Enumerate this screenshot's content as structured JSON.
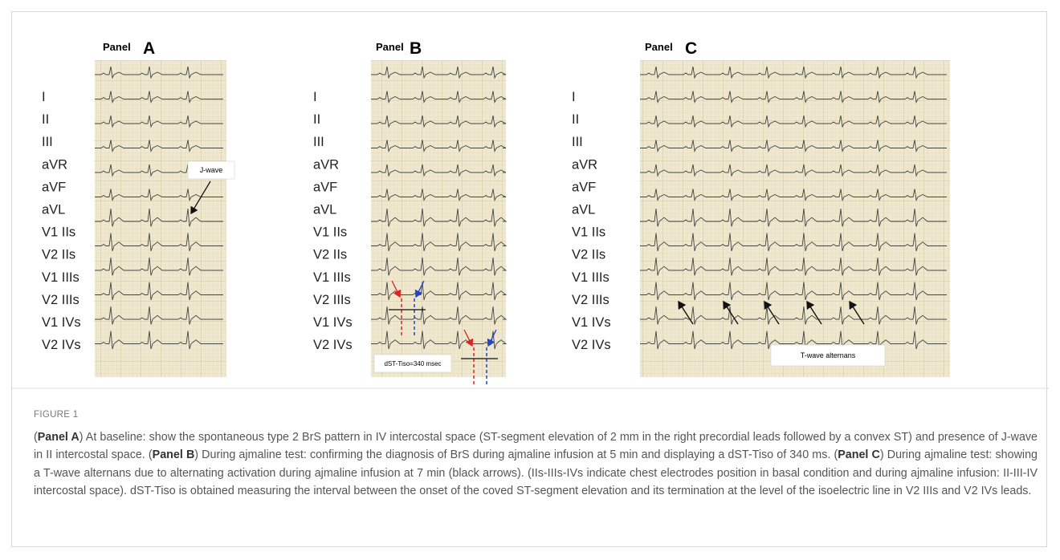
{
  "panels": [
    {
      "prefix": "Panel",
      "letter": "A",
      "leads": [
        "I",
        "II",
        "III",
        "aVR",
        "aVF",
        "aVL",
        "V1 IIs",
        "V2 IIs",
        "V1 IIIs",
        "V2 IIIs",
        "V1 IVs",
        "V2 IVs"
      ],
      "annotations": [
        "J-wave"
      ]
    },
    {
      "prefix": "Panel",
      "letter": "B",
      "leads": [
        "I",
        "II",
        "III",
        "aVR",
        "aVF",
        "aVL",
        "V1 IIs",
        "V2 IIs",
        "V1 IIIs",
        "V2 IIIs",
        "V1 IVs",
        "V2 IVs"
      ],
      "annotations": [
        "dST-Tiso=340 msec"
      ]
    },
    {
      "prefix": "Panel",
      "letter": "C",
      "leads": [
        "I",
        "II",
        "III",
        "aVR",
        "aVF",
        "aVL",
        "V1 IIs",
        "V2 IIs",
        "V1 IIIs",
        "V2 IIIs",
        "V1 IVs",
        "V2 IVs"
      ],
      "annotations": [
        "T-wave alternans"
      ]
    }
  ],
  "caption": {
    "figure_label": "FIGURE 1",
    "parts": [
      {
        "text": "(",
        "bold": false
      },
      {
        "text": "Panel A",
        "bold": true
      },
      {
        "text": ") At baseline: show the spontaneous type 2 BrS pattern in IV intercostal space (ST-segment elevation of 2 mm in the right precordial leads followed by a convex ST) and presence of J-wave in II intercostal space. (",
        "bold": false
      },
      {
        "text": "Panel B",
        "bold": true
      },
      {
        "text": ") During ajmaline test: confirming the diagnosis of BrS during ajmaline infusion at 5 min and displaying a dST-Tiso of 340 ms. (",
        "bold": false
      },
      {
        "text": "Panel C",
        "bold": true
      },
      {
        "text": ") During ajmaline test: showing a T-wave alternans due to alternating activation during ajmaline infusion at 7 min (black arrows). (IIs-IIIs-IVs indicate chest electrodes position in basal condition and during ajmaline infusion: II-III-IV intercostal space). dST-Tiso is obtained measuring the interval between the onset of the coved ST-segment elevation and its termination at the level of the isoelectric line in V2 IIIs and V2 IVs leads.",
        "bold": false
      }
    ]
  }
}
